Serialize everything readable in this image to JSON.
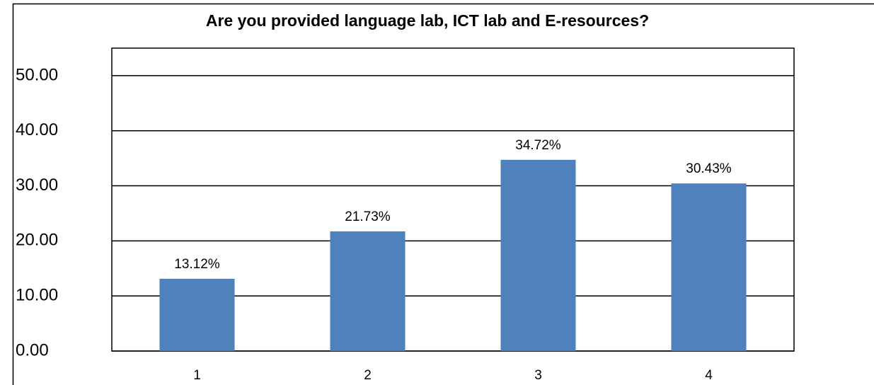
{
  "chart_data": {
    "type": "bar",
    "title": "Are you provided language lab, ICT lab and E-resources?",
    "categories": [
      "1",
      "2",
      "3",
      "4"
    ],
    "values": [
      13.12,
      21.73,
      34.72,
      30.43
    ],
    "value_labels": [
      "13.12%",
      "21.73%",
      "34.72%",
      "30.43%"
    ],
    "color": "#4f81bd",
    "ylim": [
      0,
      55
    ],
    "yticks": [
      {
        "value": 0,
        "label": "0.00"
      },
      {
        "value": 10,
        "label": "10.00"
      },
      {
        "value": 20,
        "label": "20.00"
      },
      {
        "value": 30,
        "label": "30.00"
      },
      {
        "value": 40,
        "label": "40.00"
      },
      {
        "value": 50,
        "label": "50.00"
      }
    ],
    "grid": true
  }
}
